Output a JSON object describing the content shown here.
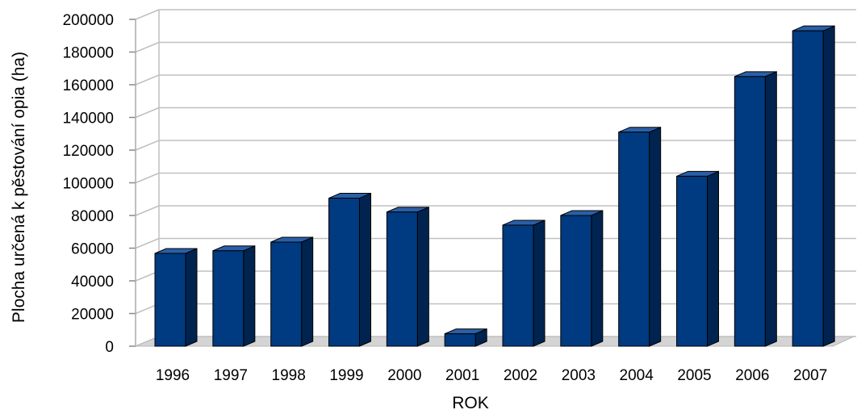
{
  "chart_data": {
    "type": "bar",
    "title": "",
    "xlabel": "ROK",
    "ylabel": "Plocha určená k pěstování opia (ha)",
    "categories": [
      "1996",
      "1997",
      "1998",
      "1999",
      "2000",
      "2001",
      "2002",
      "2003",
      "2004",
      "2005",
      "2006",
      "2007"
    ],
    "values": [
      56800,
      58400,
      63700,
      90600,
      82100,
      7600,
      74100,
      80000,
      131000,
      104000,
      165000,
      193000
    ],
    "ylim": [
      0,
      200000
    ],
    "yticks": [
      "0",
      "20000",
      "40000",
      "60000",
      "80000",
      "100000",
      "120000",
      "140000",
      "160000",
      "180000",
      "200000"
    ],
    "grid": true,
    "legend": "none",
    "style": "3d-column",
    "colors": {
      "bar_front": "#003a80",
      "bar_side": "#00244f",
      "bar_top": "#2a5fa8",
      "grid": "#c0c0c0",
      "floor": "#d4d4d4"
    }
  }
}
